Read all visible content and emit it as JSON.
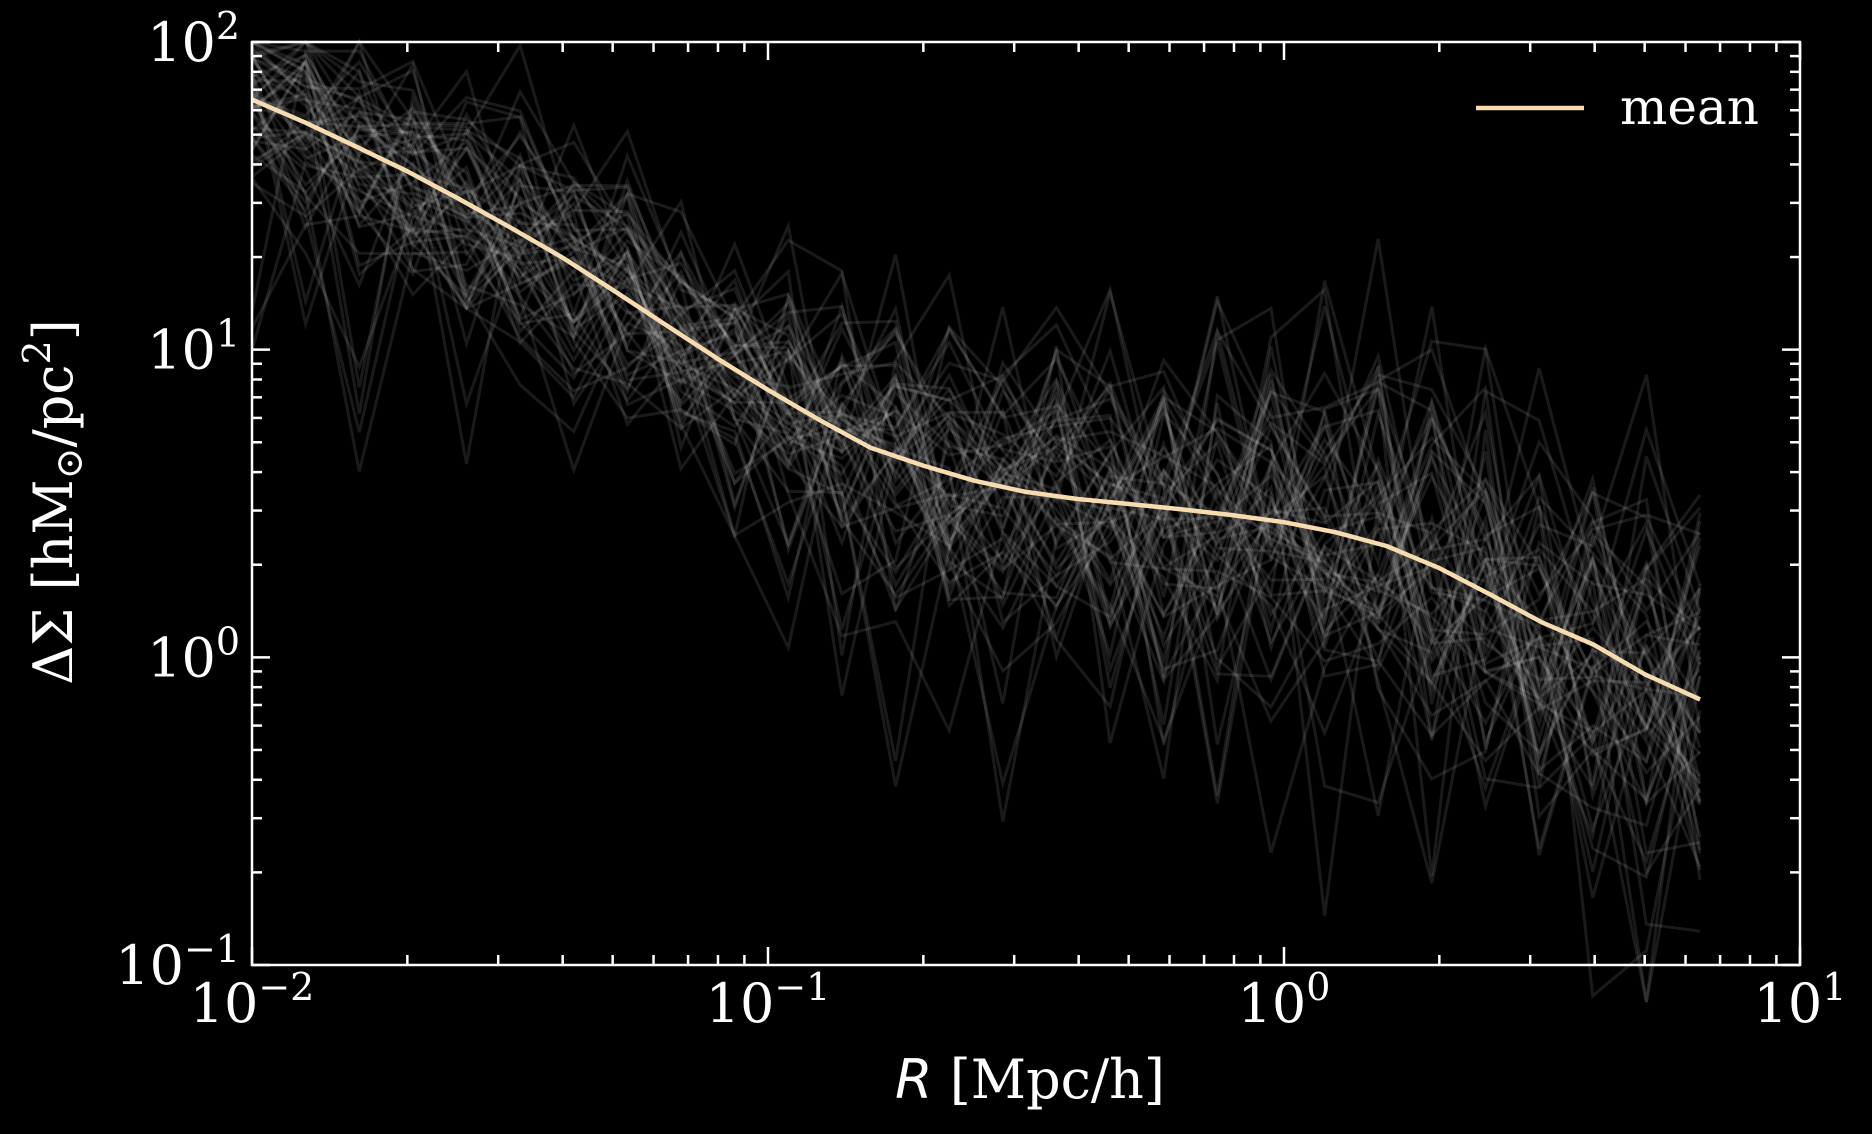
{
  "chart_data": {
    "type": "line",
    "title": "",
    "xlabel": "R [Mpc/h]",
    "xlabel_var": "R",
    "xlabel_unit": " [Mpc/h]",
    "ylabel": "ΔΣ [hM⊙/pc2]",
    "ylabel_parts": {
      "main": "ΔΣ [hM",
      "sub": "⊙",
      "mid": "/pc",
      "sup": "2",
      "end": "]"
    },
    "xscale": "log",
    "yscale": "log",
    "xlim": [
      0.01,
      10
    ],
    "ylim": [
      0.1,
      100
    ],
    "grid": false,
    "background": "#000000",
    "x_ticks": [
      {
        "base": "10",
        "exp": "−2",
        "value": 0.01
      },
      {
        "base": "10",
        "exp": "−1",
        "value": 0.1
      },
      {
        "base": "10",
        "exp": "0",
        "value": 1
      },
      {
        "base": "10",
        "exp": "1",
        "value": 10
      }
    ],
    "y_ticks": [
      {
        "base": "10",
        "exp": "−1",
        "value": 0.1
      },
      {
        "base": "10",
        "exp": "0",
        "value": 1
      },
      {
        "base": "10",
        "exp": "1",
        "value": 10
      },
      {
        "base": "10",
        "exp": "2",
        "value": 100
      }
    ],
    "legend": {
      "position": "top-right",
      "entries": [
        {
          "label": "mean",
          "color": "#f7dcb0"
        }
      ]
    },
    "series": [
      {
        "name": "mean",
        "color": "#f7dcb0",
        "x": [
          0.01,
          0.0126,
          0.0158,
          0.02,
          0.0251,
          0.0316,
          0.0398,
          0.0501,
          0.0631,
          0.0794,
          0.1,
          0.126,
          0.158,
          0.2,
          0.251,
          0.316,
          0.398,
          0.501,
          0.631,
          0.794,
          1.0,
          1.26,
          1.58,
          2.0,
          2.51,
          3.16,
          3.98,
          5.01,
          6.4
        ],
        "y": [
          65,
          55,
          46,
          38,
          31,
          25,
          20,
          15.6,
          12.1,
          9.4,
          7.4,
          5.9,
          4.8,
          4.2,
          3.75,
          3.45,
          3.27,
          3.15,
          3.03,
          2.9,
          2.75,
          2.55,
          2.3,
          1.95,
          1.6,
          1.3,
          1.1,
          0.88,
          0.73
        ]
      }
    ],
    "individual_profiles": {
      "count": 60,
      "color": "#ffffff",
      "opacity": 0.1,
      "x_min": 0.01,
      "x_max": 6.4
    }
  }
}
